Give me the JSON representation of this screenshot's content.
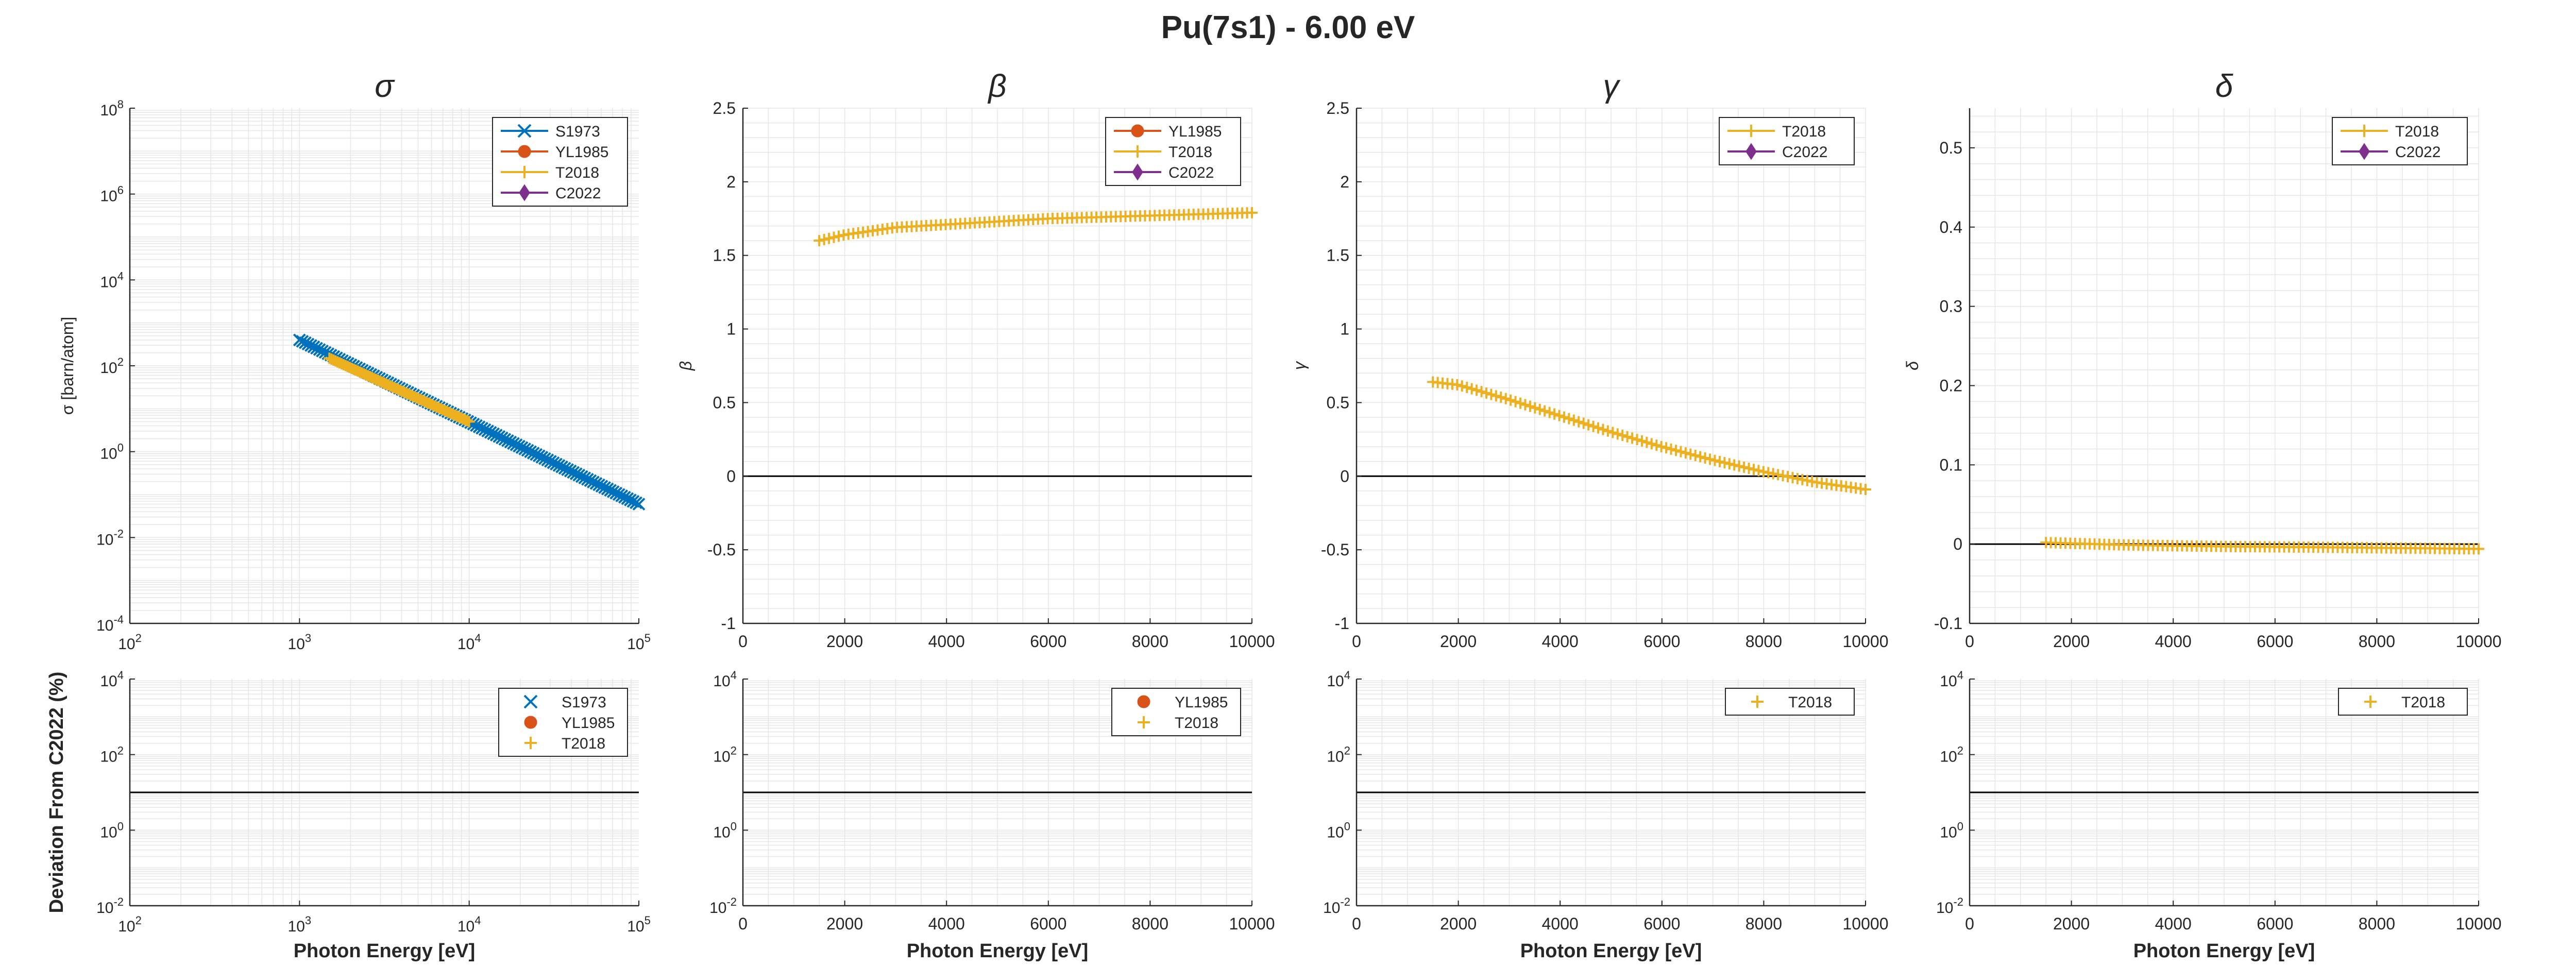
{
  "figure_title": "Pu(7s1) - 6.00 eV",
  "colors": {
    "S1973": "#0072BD",
    "YL1985": "#D95319",
    "T2018": "#EDB120",
    "C2022": "#7E2F8E",
    "axis": "#262626",
    "grid": "#e6e6e6",
    "zero_line": "#000000"
  },
  "chart_data": [
    {
      "id": "sigma-top",
      "type": "scatter",
      "title": "σ",
      "xlabel": "",
      "ylabel": "σ [barn/atom]",
      "xscale": "log",
      "yscale": "log",
      "xlim": [
        100,
        100000
      ],
      "ylim": [
        0.0001,
        100000000
      ],
      "xticks": [
        100,
        1000,
        10000,
        100000
      ],
      "yticks": [
        0.0001,
        0.01,
        1,
        100,
        10000,
        1000000,
        100000000
      ],
      "grid": true,
      "legend_position": "top-right",
      "legend": [
        {
          "name": "S1973",
          "marker": "x",
          "line": true
        },
        {
          "name": "YL1985",
          "marker": "o",
          "line": true
        },
        {
          "name": "T2018",
          "marker": "+",
          "line": true
        },
        {
          "name": "C2022",
          "marker": "d",
          "line": true
        }
      ],
      "series": [
        {
          "name": "S1973",
          "marker": "x",
          "x_range": [
            1000,
            100000
          ],
          "y_range": [
            400,
            0.06
          ],
          "n_points": 120
        },
        {
          "name": "T2018",
          "marker": "+",
          "x_range": [
            1500,
            10000
          ],
          "y_range": [
            150,
            5
          ],
          "n_points": 70
        }
      ]
    },
    {
      "id": "beta-top",
      "type": "scatter",
      "title": "β",
      "xlabel": "",
      "ylabel": "β",
      "xscale": "linear",
      "yscale": "linear",
      "xlim": [
        0,
        10000
      ],
      "ylim": [
        -1,
        2.5
      ],
      "xticks": [
        0,
        2000,
        4000,
        6000,
        8000,
        10000
      ],
      "yticks": [
        -1,
        -0.5,
        0,
        0.5,
        1,
        1.5,
        2,
        2.5
      ],
      "grid": true,
      "zero_line": true,
      "legend_position": "top-right",
      "legend": [
        {
          "name": "YL1985",
          "marker": "o",
          "line": true
        },
        {
          "name": "T2018",
          "marker": "+",
          "line": true
        },
        {
          "name": "C2022",
          "marker": "d",
          "line": true
        }
      ],
      "series": [
        {
          "name": "T2018",
          "marker": "+",
          "points": [
            [
              1500,
              1.6
            ],
            [
              2000,
              1.64
            ],
            [
              3000,
              1.69
            ],
            [
              4000,
              1.71
            ],
            [
              5000,
              1.73
            ],
            [
              6000,
              1.75
            ],
            [
              7000,
              1.76
            ],
            [
              8000,
              1.77
            ],
            [
              9000,
              1.78
            ],
            [
              10000,
              1.79
            ]
          ],
          "n_points": 90
        }
      ]
    },
    {
      "id": "gamma-top",
      "type": "scatter",
      "title": "γ",
      "xlabel": "",
      "ylabel": "γ",
      "xscale": "linear",
      "yscale": "linear",
      "xlim": [
        0,
        10000
      ],
      "ylim": [
        -1,
        2.5
      ],
      "xticks": [
        0,
        2000,
        4000,
        6000,
        8000,
        10000
      ],
      "yticks": [
        -1,
        -0.5,
        0,
        0.5,
        1,
        1.5,
        2,
        2.5
      ],
      "grid": true,
      "zero_line": true,
      "legend_position": "top-right",
      "legend": [
        {
          "name": "T2018",
          "marker": "+",
          "line": true
        },
        {
          "name": "C2022",
          "marker": "d",
          "line": true
        }
      ],
      "series": [
        {
          "name": "T2018",
          "marker": "+",
          "points": [
            [
              1500,
              0.64
            ],
            [
              2000,
              0.62
            ],
            [
              3000,
              0.52
            ],
            [
              4000,
              0.41
            ],
            [
              5000,
              0.3
            ],
            [
              6000,
              0.2
            ],
            [
              7000,
              0.11
            ],
            [
              8000,
              0.03
            ],
            [
              9000,
              -0.04
            ],
            [
              10000,
              -0.09
            ]
          ],
          "n_points": 90
        }
      ]
    },
    {
      "id": "delta-top",
      "type": "scatter",
      "title": "δ",
      "xlabel": "",
      "ylabel": "δ",
      "xscale": "linear",
      "yscale": "linear",
      "xlim": [
        0,
        10000
      ],
      "ylim": [
        -0.1,
        0.55
      ],
      "xticks": [
        0,
        2000,
        4000,
        6000,
        8000,
        10000
      ],
      "yticks": [
        -0.1,
        0,
        0.1,
        0.2,
        0.3,
        0.4,
        0.5
      ],
      "grid": true,
      "zero_line": true,
      "legend_position": "top-right",
      "legend": [
        {
          "name": "T2018",
          "marker": "+",
          "line": true
        },
        {
          "name": "C2022",
          "marker": "d",
          "line": true
        }
      ],
      "series": [
        {
          "name": "T2018",
          "marker": "+",
          "points": [
            [
              1500,
              0.002
            ],
            [
              3000,
              -0.001
            ],
            [
              5000,
              -0.003
            ],
            [
              7000,
              -0.004
            ],
            [
              10000,
              -0.006
            ]
          ],
          "n_points": 90
        }
      ]
    },
    {
      "id": "sigma-dev",
      "type": "scatter",
      "title": "",
      "xlabel": "Photon Energy [eV]",
      "ylabel": "Deviation From C2022 (%)",
      "xscale": "log",
      "yscale": "log",
      "xlim": [
        100,
        100000
      ],
      "ylim": [
        0.01,
        10000
      ],
      "xticks": [
        100,
        1000,
        10000,
        100000
      ],
      "yticks": [
        0.01,
        1,
        100,
        10000
      ],
      "grid": true,
      "reference_line": 10,
      "legend_position": "top-right",
      "legend": [
        {
          "name": "S1973",
          "marker": "x",
          "line": false
        },
        {
          "name": "YL1985",
          "marker": "o",
          "line": false
        },
        {
          "name": "T2018",
          "marker": "+",
          "line": false
        }
      ],
      "series": []
    },
    {
      "id": "beta-dev",
      "type": "scatter",
      "title": "",
      "xlabel": "Photon Energy [eV]",
      "ylabel": "",
      "xscale": "linear",
      "yscale": "log",
      "xlim": [
        0,
        10000
      ],
      "ylim": [
        0.01,
        10000
      ],
      "xticks": [
        0,
        2000,
        4000,
        6000,
        8000,
        10000
      ],
      "yticks": [
        0.01,
        1,
        100,
        10000
      ],
      "grid": true,
      "reference_line": 10,
      "legend_position": "top-right",
      "legend": [
        {
          "name": "YL1985",
          "marker": "o",
          "line": false
        },
        {
          "name": "T2018",
          "marker": "+",
          "line": false
        }
      ],
      "series": []
    },
    {
      "id": "gamma-dev",
      "type": "scatter",
      "title": "",
      "xlabel": "Photon Energy [eV]",
      "ylabel": "",
      "xscale": "linear",
      "yscale": "log",
      "xlim": [
        0,
        10000
      ],
      "ylim": [
        0.01,
        10000
      ],
      "xticks": [
        0,
        2000,
        4000,
        6000,
        8000,
        10000
      ],
      "yticks": [
        0.01,
        1,
        100,
        10000
      ],
      "grid": true,
      "reference_line": 10,
      "legend_position": "top-right",
      "legend": [
        {
          "name": "T2018",
          "marker": "+",
          "line": false
        }
      ],
      "series": []
    },
    {
      "id": "delta-dev",
      "type": "scatter",
      "title": "",
      "xlabel": "Photon Energy [eV]",
      "ylabel": "",
      "xscale": "linear",
      "yscale": "log",
      "xlim": [
        0,
        10000
      ],
      "ylim": [
        0.01,
        10000
      ],
      "xticks": [
        0,
        2000,
        4000,
        6000,
        8000,
        10000
      ],
      "yticks": [
        0.01,
        1,
        100,
        10000
      ],
      "grid": true,
      "reference_line": 10,
      "legend_position": "top-right",
      "legend": [
        {
          "name": "T2018",
          "marker": "+",
          "line": false
        }
      ],
      "series": []
    }
  ]
}
